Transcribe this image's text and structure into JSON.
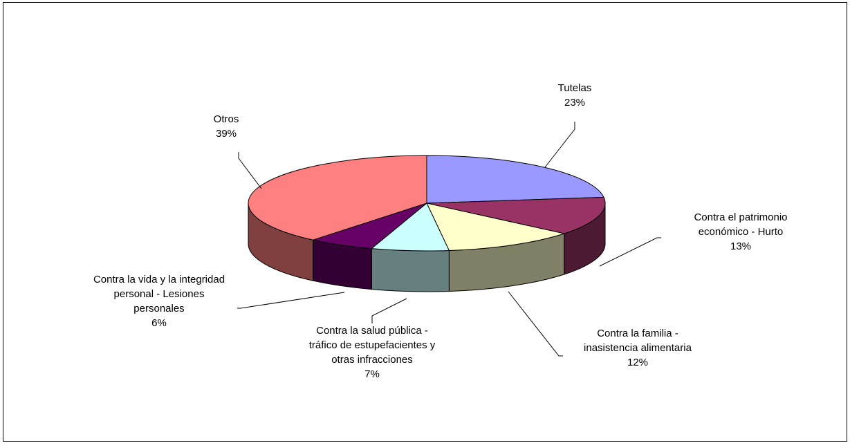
{
  "chart_data": {
    "type": "pie",
    "style": "3d",
    "title": "",
    "legend": "none",
    "slices": [
      {
        "name": "Tutelas",
        "value": 23,
        "label": "23%",
        "color": "#9999ff",
        "side_color": "#4d4d80"
      },
      {
        "name": "Contra el patrimonio económico - Hurto",
        "value": 13,
        "label": "13%",
        "color": "#993366",
        "side_color": "#4d1a33"
      },
      {
        "name": "Contra la familia - inasistencia alimentaria",
        "value": 12,
        "label": "12%",
        "color": "#ffffcc",
        "side_color": "#808066"
      },
      {
        "name": "Contra la salud pública - tráfico de estupefacientes y otras infracciones",
        "value": 7,
        "label": "7%",
        "color": "#ccffff",
        "side_color": "#668080"
      },
      {
        "name": "Contra la vida y la integridad personal - Lesiones personales",
        "value": 6,
        "label": "6%",
        "color": "#660066",
        "side_color": "#330033"
      },
      {
        "name": "Otros",
        "value": 39,
        "label": "39%",
        "color": "#ff8080",
        "side_color": "#804040"
      }
    ],
    "label_lines": [
      [
        "Tutelas"
      ],
      [
        "Contra el patrimonio",
        "económico - Hurto"
      ],
      [
        "Contra la familia -",
        "inasistencia alimentaria"
      ],
      [
        "Contra la salud pública -",
        "tráfico de estupefacientes y",
        "otras infracciones"
      ],
      [
        "Contra la vida y la integridad",
        "personal - Lesiones",
        "personales"
      ],
      [
        "Otros"
      ]
    ]
  }
}
